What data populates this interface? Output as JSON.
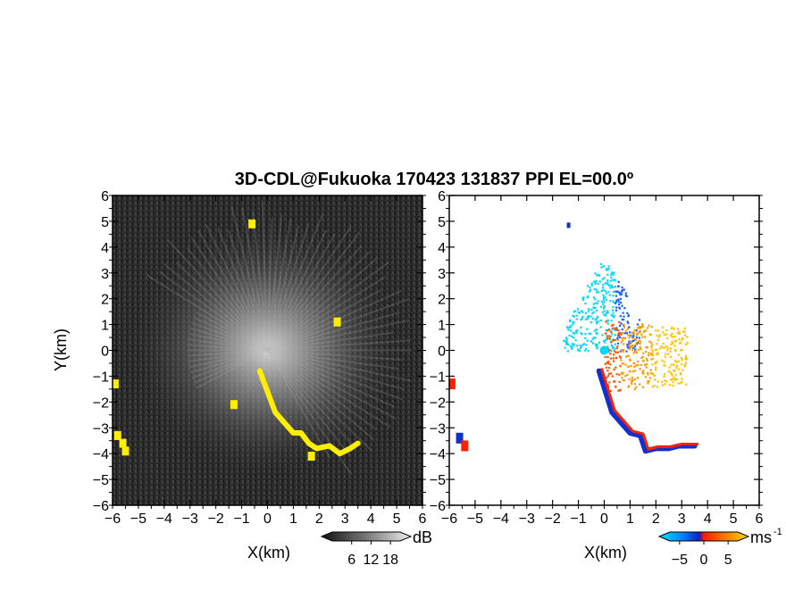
{
  "title": "3D-CDL@Fukuoka 170423 131837 PPI EL=00.0º",
  "chart_data": [
    {
      "type": "heatmap",
      "panel": "left",
      "quantity": "reflectivity",
      "xlabel": "X(km)",
      "ylabel": "Y(km)",
      "xlim": [
        -6,
        6
      ],
      "ylim": [
        -6,
        6
      ],
      "xticks": [
        "-6",
        "-5",
        "-4",
        "-3",
        "-2",
        "-1",
        "0",
        "1",
        "2",
        "3",
        "4",
        "5",
        "6"
      ],
      "yticks": [
        "-6",
        "-5",
        "-4",
        "-3",
        "-2",
        "-1",
        "0",
        "1",
        "2",
        "3",
        "4",
        "5",
        "6"
      ],
      "background_color": "#2a2a2a",
      "highlight_color": "#ffee00",
      "colorbar": {
        "ticks": [
          "6",
          "12",
          "18"
        ],
        "unit": "dB",
        "range": [
          0,
          21
        ]
      },
      "highlight_features": [
        {
          "name": "south-east streak",
          "path": [
            [
              -0.3,
              -0.8
            ],
            [
              0.3,
              -2.4
            ],
            [
              1.0,
              -3.2
            ],
            [
              1.3,
              -3.2
            ],
            [
              1.6,
              -3.6
            ],
            [
              1.9,
              -3.8
            ],
            [
              2.4,
              -3.7
            ],
            [
              2.8,
              -4.0
            ],
            [
              3.2,
              -3.8
            ],
            [
              3.5,
              -3.6
            ]
          ]
        },
        {
          "name": "west edge echo",
          "points": [
            [
              -5.9,
              -1.3
            ],
            [
              -5.8,
              -3.3
            ],
            [
              -5.6,
              -3.6
            ],
            [
              -5.5,
              -3.9
            ]
          ]
        },
        {
          "name": "isolated specks",
          "points": [
            [
              -1.3,
              -2.1
            ],
            [
              -0.6,
              4.9
            ],
            [
              2.7,
              1.1
            ],
            [
              1.7,
              -4.1
            ]
          ]
        }
      ]
    },
    {
      "type": "heatmap",
      "panel": "right",
      "quantity": "radial velocity",
      "xlabel": "X(km)",
      "ylabel": "",
      "xlim": [
        -6,
        6
      ],
      "ylim": [
        -6,
        6
      ],
      "xticks": [
        "-6",
        "-5",
        "-4",
        "-3",
        "-2",
        "-1",
        "0",
        "1",
        "2",
        "3",
        "4",
        "5",
        "6"
      ],
      "yticks": [
        "-6",
        "-5",
        "-4",
        "-3",
        "-2",
        "-1",
        "0",
        "1",
        "2",
        "3",
        "4",
        "5",
        "6"
      ],
      "background_color": "#ffffff",
      "colorbar": {
        "ticks": [
          "-5",
          "0",
          "5"
        ],
        "unit": "ms",
        "unit_exponent": "-1",
        "range": [
          -7,
          7
        ]
      },
      "velocity_regions": [
        {
          "name": "north approaching lobe",
          "velocity_range": [
            -6,
            -3
          ],
          "color": "#00d8ff",
          "extent": {
            "x": [
              -1.6,
              1.4
            ],
            "y": [
              0,
              3.4
            ]
          }
        },
        {
          "name": "east receding lobe",
          "velocity_range": [
            2,
            5
          ],
          "color": "#ff8800",
          "extent": {
            "x": [
              0,
              3.2
            ],
            "y": [
              -1.6,
              1.2
            ]
          }
        },
        {
          "name": "south-east streak",
          "velocity_range": [
            -7,
            7
          ],
          "colors": [
            "#1030d0",
            "#ff2000"
          ],
          "path": [
            [
              -0.2,
              -0.8
            ],
            [
              0.3,
              -2.4
            ],
            [
              1.0,
              -3.2
            ],
            [
              1.4,
              -3.3
            ],
            [
              1.6,
              -3.9
            ],
            [
              2.0,
              -3.8
            ],
            [
              2.5,
              -3.8
            ],
            [
              2.9,
              -3.7
            ],
            [
              3.5,
              -3.7
            ]
          ]
        },
        {
          "name": "west edge echo",
          "colors": [
            "#ff2000",
            "#1030d0"
          ],
          "points": [
            [
              -5.9,
              -1.3
            ],
            [
              -5.6,
              -3.4
            ],
            [
              -5.4,
              -3.7
            ]
          ]
        }
      ]
    }
  ]
}
